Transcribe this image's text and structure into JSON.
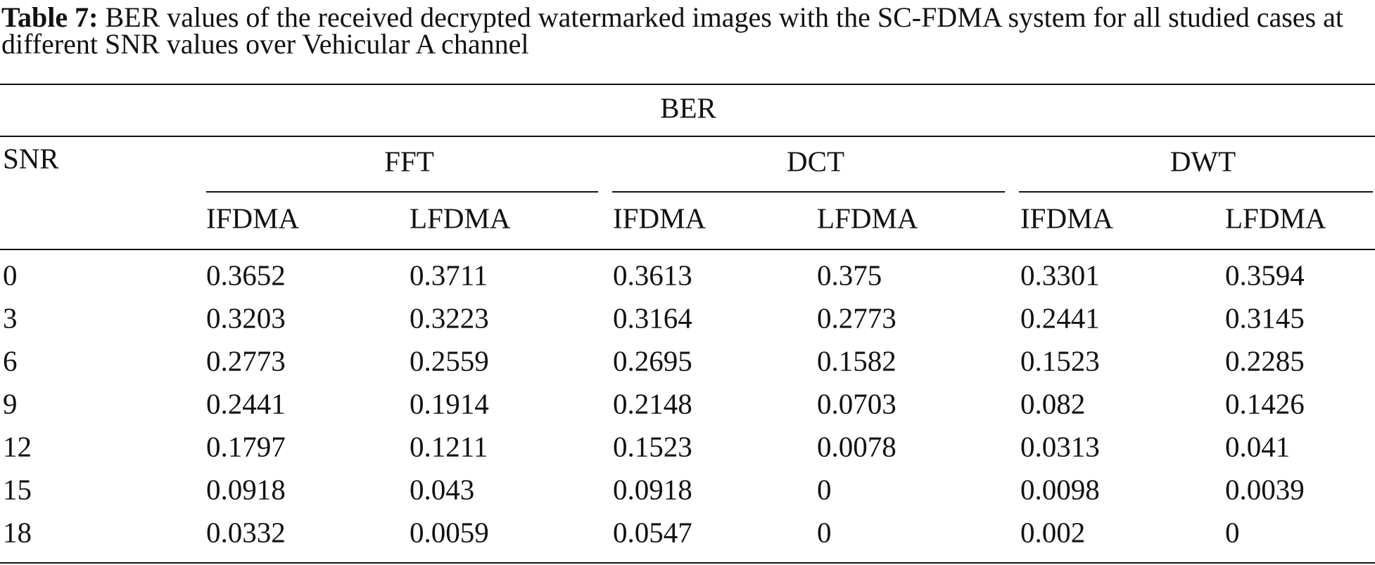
{
  "caption": {
    "label": "Table 7:",
    "text": "BER values of the received decrypted watermarked images with the SC-FDMA system for all studied cases at different SNR values over Vehicular A channel"
  },
  "table": {
    "top_header": "BER",
    "row_header": "SNR",
    "groups": [
      "FFT",
      "DCT",
      "DWT"
    ],
    "subheaders": [
      "IFDMA",
      "LFDMA",
      "IFDMA",
      "LFDMA",
      "IFDMA",
      "LFDMA"
    ],
    "rows": [
      [
        "0",
        "0.3652",
        "0.3711",
        "0.3613",
        "0.375",
        "0.3301",
        "0.3594"
      ],
      [
        "3",
        "0.3203",
        "0.3223",
        "0.3164",
        "0.2773",
        "0.2441",
        "0.3145"
      ],
      [
        "6",
        "0.2773",
        "0.2559",
        "0.2695",
        "0.1582",
        "0.1523",
        "0.2285"
      ],
      [
        "9",
        "0.2441",
        "0.1914",
        "0.2148",
        "0.0703",
        "0.082",
        "0.1426"
      ],
      [
        "12",
        "0.1797",
        "0.1211",
        "0.1523",
        "0.0078",
        "0.0313",
        "0.041"
      ],
      [
        "15",
        "0.0918",
        "0.043",
        "0.0918",
        "0",
        "0.0098",
        "0.0039"
      ],
      [
        "18",
        "0.0332",
        "0.0059",
        "0.0547",
        "0",
        "0.002",
        "0"
      ]
    ]
  }
}
